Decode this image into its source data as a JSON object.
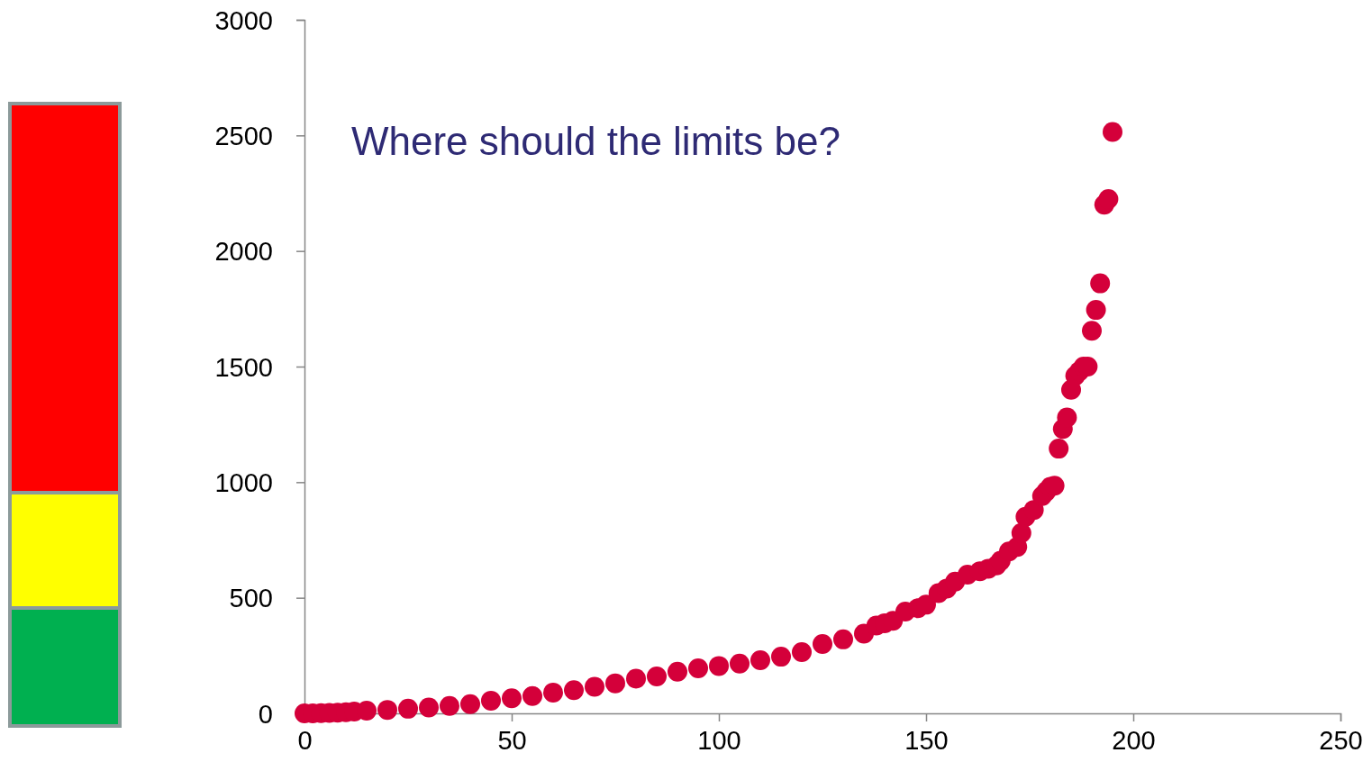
{
  "chart_data": {
    "type": "scatter",
    "color": "#d4003a",
    "marker": "circle",
    "annotations": [
      "Where should the limits be?"
    ],
    "xlim": [
      0,
      250
    ],
    "xticks": [
      0,
      50,
      100,
      150,
      200,
      250
    ],
    "ylim": [
      0,
      3000
    ],
    "yticks": [
      0,
      500,
      1000,
      1500,
      2000,
      2500,
      3000
    ],
    "x": [
      0,
      2,
      4,
      6,
      8,
      10,
      12,
      15,
      20,
      25,
      30,
      35,
      40,
      45,
      50,
      55,
      60,
      65,
      70,
      75,
      80,
      85,
      90,
      95,
      100,
      105,
      110,
      115,
      120,
      125,
      130,
      135,
      138,
      140,
      142,
      145,
      148,
      150,
      153,
      155,
      157,
      160,
      163,
      165,
      167,
      168,
      170,
      172,
      173,
      174,
      176,
      178,
      179,
      180,
      181,
      182,
      183,
      184,
      185,
      186,
      187,
      188,
      189,
      190,
      191,
      192,
      193,
      194,
      195
    ],
    "values": [
      0,
      0,
      1,
      2,
      3,
      5,
      8,
      12,
      15,
      20,
      25,
      32,
      40,
      55,
      65,
      75,
      90,
      100,
      115,
      130,
      150,
      160,
      180,
      195,
      205,
      215,
      230,
      245,
      265,
      300,
      320,
      345,
      380,
      390,
      400,
      440,
      455,
      470,
      520,
      540,
      570,
      600,
      615,
      625,
      640,
      660,
      700,
      720,
      780,
      850,
      880,
      940,
      960,
      980,
      985,
      1145,
      1230,
      1280,
      1400,
      1460,
      1480,
      1500,
      1500,
      1655,
      1745,
      1860,
      2200,
      2225,
      2515
    ]
  }
}
